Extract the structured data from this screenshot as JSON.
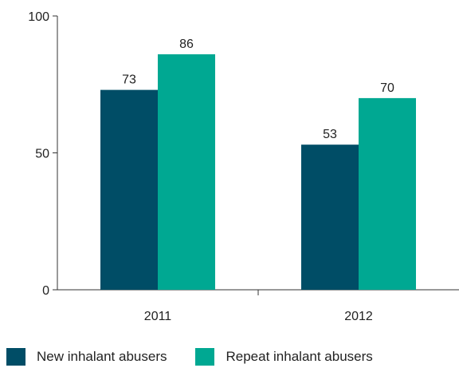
{
  "chart_data": {
    "type": "bar",
    "categories": [
      "2011",
      "2012"
    ],
    "series": [
      {
        "name": "New inhalant abusers",
        "values": [
          73,
          53
        ],
        "color": "#004d66"
      },
      {
        "name": "Repeat inhalant abusers",
        "values": [
          86,
          70
        ],
        "color": "#00a892"
      }
    ],
    "ylim": [
      0,
      100
    ],
    "yticks": [
      "0",
      "50",
      "100"
    ],
    "grid": false,
    "legend_position": "bottom"
  }
}
